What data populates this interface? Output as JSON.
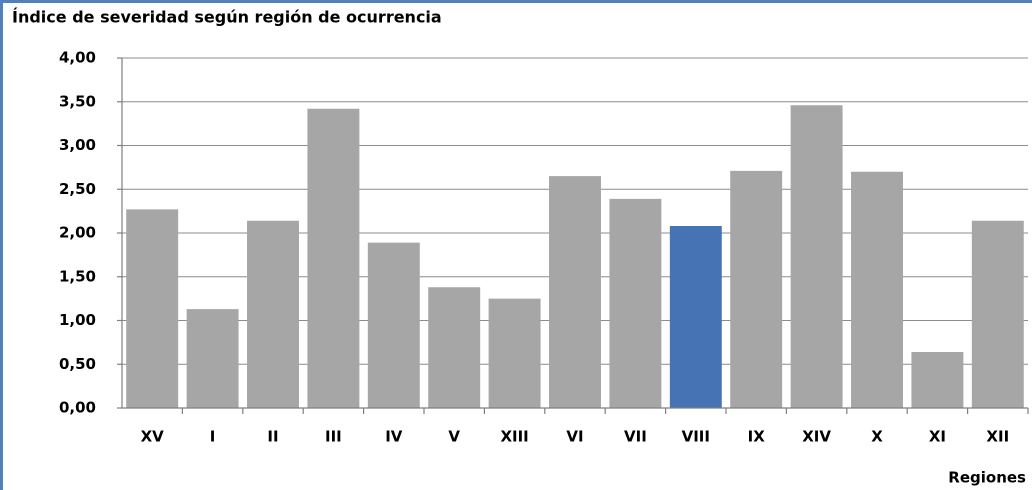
{
  "chart_data": {
    "type": "bar",
    "title": "Índice de severidad según región de ocurrencia",
    "x_label": "Regiones",
    "categories": [
      "XV",
      "I",
      "II",
      "III",
      "IV",
      "V",
      "XIII",
      "VI",
      "VII",
      "VIII",
      "IX",
      "XIV",
      "X",
      "XI",
      "XII"
    ],
    "values": [
      2.27,
      1.13,
      2.14,
      3.42,
      1.89,
      1.38,
      1.25,
      2.65,
      2.39,
      2.08,
      2.71,
      3.46,
      2.7,
      0.64,
      2.14
    ],
    "colors": [
      "#a6a6a6",
      "#a6a6a6",
      "#a6a6a6",
      "#a6a6a6",
      "#a6a6a6",
      "#a6a6a6",
      "#a6a6a6",
      "#a6a6a6",
      "#a6a6a6",
      "#4673b4",
      "#a6a6a6",
      "#a6a6a6",
      "#a6a6a6",
      "#a6a6a6",
      "#a6a6a6"
    ],
    "ylim": [
      0,
      4
    ],
    "yticks": [
      {
        "value": 0,
        "label": "0,00"
      },
      {
        "value": 0.5,
        "label": "0,50"
      },
      {
        "value": 1,
        "label": "1,00"
      },
      {
        "value": 1.5,
        "label": "1,50"
      },
      {
        "value": 2,
        "label": "2,00"
      },
      {
        "value": 2.5,
        "label": "2,50"
      },
      {
        "value": 3,
        "label": "3,00"
      },
      {
        "value": 3.5,
        "label": "3,50"
      },
      {
        "value": 4,
        "label": "4,00"
      }
    ],
    "grid": true
  }
}
